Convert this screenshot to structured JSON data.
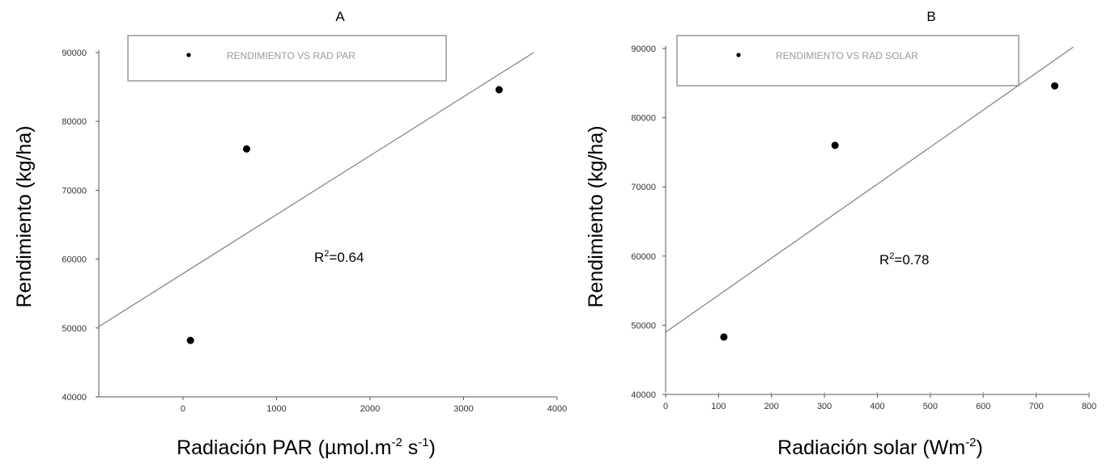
{
  "chart_data": [
    {
      "panel": "A",
      "type": "scatter",
      "title": "A",
      "xlabel": "Radiación PAR (µmol.m",
      "xlabel_sup1": "-2",
      "xlabel_mid": " s",
      "xlabel_sup2": "-1",
      "xlabel_end": ")",
      "ylabel": "Rendimiento (kg/ha)",
      "xlim": [
        -900,
        4000
      ],
      "ylim": [
        40000,
        90000
      ],
      "xticks": [
        0,
        1000,
        2000,
        3000,
        4000
      ],
      "xtick_labels": [
        "0",
        "1000",
        "2000",
        "3000",
        "4000"
      ],
      "yticks": [
        40000,
        50000,
        60000,
        70000,
        80000,
        90000
      ],
      "ytick_labels": [
        "40000",
        "50000",
        "60000",
        "70000",
        "80000",
        "90000"
      ],
      "series": [
        {
          "name": "RENDIMIENTO VS RAD PAR",
          "points": [
            {
              "x": 80,
              "y": 48200
            },
            {
              "x": 680,
              "y": 76000
            },
            {
              "x": 3380,
              "y": 84600
            }
          ]
        }
      ],
      "trendline": {
        "x": [
          -900,
          3750
        ],
        "y": [
          50200,
          90000
        ]
      },
      "annotation": {
        "prefix": "R",
        "sup": "2",
        "suffix": "=0.64"
      },
      "legend_position": "top",
      "grid": false
    },
    {
      "panel": "B",
      "type": "scatter",
      "title": "B",
      "xlabel": "Radiación solar (Wm",
      "xlabel_sup1": "-2",
      "xlabel_mid": "",
      "xlabel_sup2": "",
      "xlabel_end": ")",
      "ylabel": "Rendimiento (kg/ha)",
      "xlim": [
        0,
        800
      ],
      "ylim": [
        40000,
        90000
      ],
      "xticks": [
        0,
        100,
        200,
        300,
        400,
        500,
        600,
        700,
        800
      ],
      "xtick_labels": [
        "0",
        "100",
        "200",
        "300",
        "400",
        "500",
        "600",
        "700",
        "800"
      ],
      "yticks": [
        40000,
        50000,
        60000,
        70000,
        80000,
        90000
      ],
      "ytick_labels": [
        "40000",
        "50000",
        "60000",
        "70000",
        "80000",
        "90000"
      ],
      "series": [
        {
          "name": "RENDIMIENTO VS RAD SOLAR",
          "points": [
            {
              "x": 110,
              "y": 48300
            },
            {
              "x": 320,
              "y": 76000
            },
            {
              "x": 735,
              "y": 84600
            }
          ]
        }
      ],
      "trendline": {
        "x": [
          0,
          770
        ],
        "y": [
          49000,
          90200
        ]
      },
      "annotation": {
        "prefix": "R",
        "sup": "2",
        "suffix": "=0.78"
      },
      "legend_position": "top",
      "grid": false
    }
  ]
}
